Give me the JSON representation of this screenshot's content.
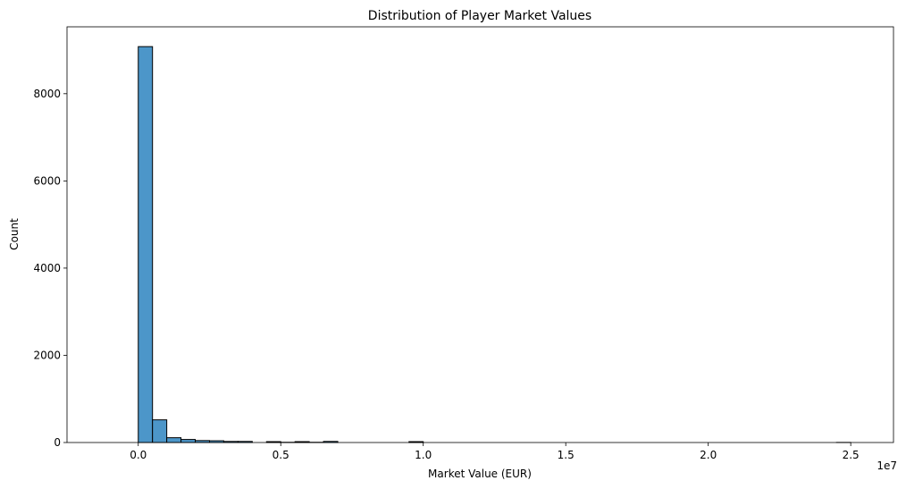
{
  "chart_data": {
    "type": "bar",
    "title": "Distribution of Player Market Values",
    "xlabel": "Market Value (EUR)",
    "ylabel": "Count",
    "x_offset_label": "1e7",
    "xlim": [
      -2500000,
      26500000
    ],
    "ylim": [
      0,
      9534
    ],
    "x_ticks": [
      0,
      5000000,
      10000000,
      15000000,
      20000000,
      25000000
    ],
    "x_tick_labels": [
      "0.0",
      "0.5",
      "1.0",
      "1.5",
      "2.0",
      "2.5"
    ],
    "y_ticks": [
      0,
      2000,
      4000,
      6000,
      8000
    ],
    "y_tick_labels": [
      "0",
      "2000",
      "4000",
      "6000",
      "8000"
    ],
    "grid": false,
    "bar_color": "#4c96c9",
    "edge_color": "#000000",
    "bin_width": 500000,
    "bin_start": 0,
    "bin_counts": [
      9080,
      520,
      110,
      70,
      45,
      40,
      25,
      25,
      0,
      20,
      5,
      20,
      5,
      25,
      0,
      0,
      0,
      0,
      0,
      20,
      0,
      0,
      0,
      0,
      0,
      0,
      0,
      0,
      0,
      0,
      0,
      0,
      0,
      0,
      0,
      0,
      0,
      0,
      0,
      0,
      0,
      0,
      0,
      0,
      0,
      0,
      0,
      0,
      0,
      2
    ]
  }
}
